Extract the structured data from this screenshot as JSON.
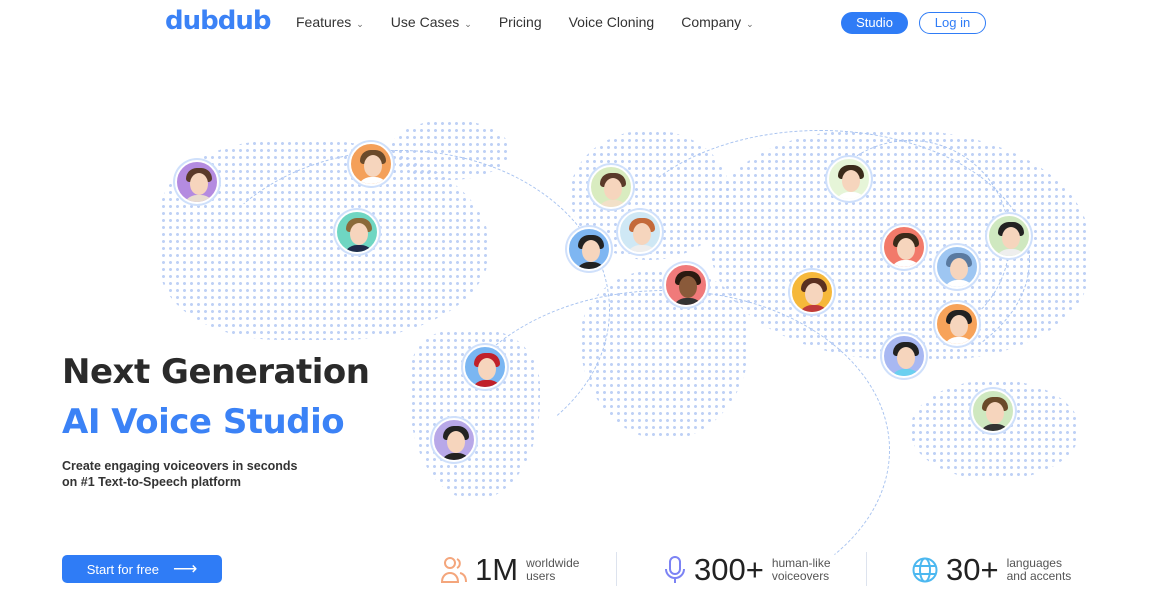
{
  "nav": {
    "logo": "dubdub",
    "items": [
      {
        "label": "Features",
        "dropdown": true
      },
      {
        "label": "Use Cases",
        "dropdown": true
      },
      {
        "label": "Pricing",
        "dropdown": false
      },
      {
        "label": "Voice Cloning",
        "dropdown": false
      },
      {
        "label": "Company",
        "dropdown": true
      }
    ],
    "studio": "Studio",
    "login": "Log in"
  },
  "hero": {
    "title1": "Next Generation",
    "title2": "AI Voice Studio",
    "subtitle1": "Create engaging voiceovers in seconds",
    "subtitle2": "on #1 Text-to-Speech platform",
    "cta": "Start for free"
  },
  "stats": [
    {
      "icon": "users-icon",
      "color": "#f4a67c",
      "value": "1M",
      "label1": "worldwide",
      "label2": "users"
    },
    {
      "icon": "microphone-icon",
      "color": "#7c83f4",
      "value": "300+",
      "label1": "human-like",
      "label2": "voiceovers"
    },
    {
      "icon": "globe-icon",
      "color": "#4cb8f0",
      "value": "30+",
      "label1": "languages",
      "label2": "and accents"
    }
  ],
  "colors": {
    "accent": "#2f7cf6"
  }
}
